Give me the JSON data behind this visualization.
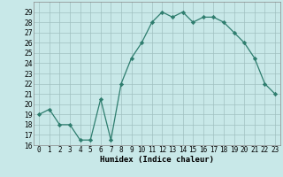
{
  "x": [
    0,
    1,
    2,
    3,
    4,
    5,
    6,
    7,
    8,
    9,
    10,
    11,
    12,
    13,
    14,
    15,
    16,
    17,
    18,
    19,
    20,
    21,
    22,
    23
  ],
  "y": [
    19,
    19.5,
    18,
    18,
    16.5,
    16.5,
    20.5,
    16.5,
    22,
    24.5,
    26,
    28,
    29,
    28.5,
    29,
    28,
    28.5,
    28.5,
    28,
    27,
    26,
    24.5,
    22,
    21
  ],
  "line_color": "#2e7d6e",
  "marker": "D",
  "marker_size": 2.2,
  "bg_color": "#c8e8e8",
  "grid_color": "#a0c0c0",
  "xlabel": "Humidex (Indice chaleur)",
  "ylim": [
    16,
    30
  ],
  "xlim": [
    -0.5,
    23.5
  ],
  "yticks": [
    16,
    17,
    18,
    19,
    20,
    21,
    22,
    23,
    24,
    25,
    26,
    27,
    28,
    29
  ],
  "xticks": [
    0,
    1,
    2,
    3,
    4,
    5,
    6,
    7,
    8,
    9,
    10,
    11,
    12,
    13,
    14,
    15,
    16,
    17,
    18,
    19,
    20,
    21,
    22,
    23
  ],
  "xtick_labels": [
    "0",
    "1",
    "2",
    "3",
    "4",
    "5",
    "6",
    "7",
    "8",
    "9",
    "10",
    "11",
    "12",
    "13",
    "14",
    "15",
    "16",
    "17",
    "18",
    "19",
    "20",
    "21",
    "22",
    "23"
  ],
  "label_fontsize": 6.5,
  "tick_fontsize": 5.5,
  "linewidth": 0.9
}
